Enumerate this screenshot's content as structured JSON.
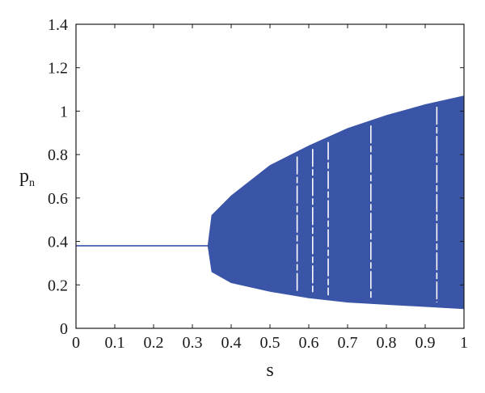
{
  "chart_data": {
    "type": "area",
    "title": "",
    "xlabel": "s",
    "ylabel": "p",
    "ylabel_subscript": "n",
    "xlim": [
      0,
      1
    ],
    "ylim": [
      0,
      1.4
    ],
    "xticks": [
      "0",
      "0.1",
      "0.2",
      "0.3",
      "0.4",
      "0.5",
      "0.6",
      "0.7",
      "0.8",
      "0.9",
      "1"
    ],
    "yticks": [
      "0",
      "0.2",
      "0.4",
      "0.6",
      "0.8",
      "1",
      "1.2",
      "1.4"
    ],
    "grid": false,
    "series_color": "#3a55a8",
    "stable_branch": {
      "s_start": 0.0,
      "s_end": 0.34,
      "p": 0.38
    },
    "chaotic_upper_envelope": [
      {
        "s": 0.34,
        "p": 0.38
      },
      {
        "s": 0.35,
        "p": 0.52
      },
      {
        "s": 0.4,
        "p": 0.61
      },
      {
        "s": 0.5,
        "p": 0.75
      },
      {
        "s": 0.6,
        "p": 0.84
      },
      {
        "s": 0.7,
        "p": 0.92
      },
      {
        "s": 0.8,
        "p": 0.98
      },
      {
        "s": 0.9,
        "p": 1.03
      },
      {
        "s": 1.0,
        "p": 1.07
      }
    ],
    "chaotic_lower_envelope": [
      {
        "s": 0.34,
        "p": 0.38
      },
      {
        "s": 0.35,
        "p": 0.26
      },
      {
        "s": 0.4,
        "p": 0.21
      },
      {
        "s": 0.5,
        "p": 0.17
      },
      {
        "s": 0.6,
        "p": 0.14
      },
      {
        "s": 0.7,
        "p": 0.12
      },
      {
        "s": 0.8,
        "p": 0.11
      },
      {
        "s": 0.9,
        "p": 0.1
      },
      {
        "s": 1.0,
        "p": 0.09
      }
    ],
    "periodic_windows_s": [
      0.57,
      0.61,
      0.65,
      0.76,
      0.93
    ]
  }
}
